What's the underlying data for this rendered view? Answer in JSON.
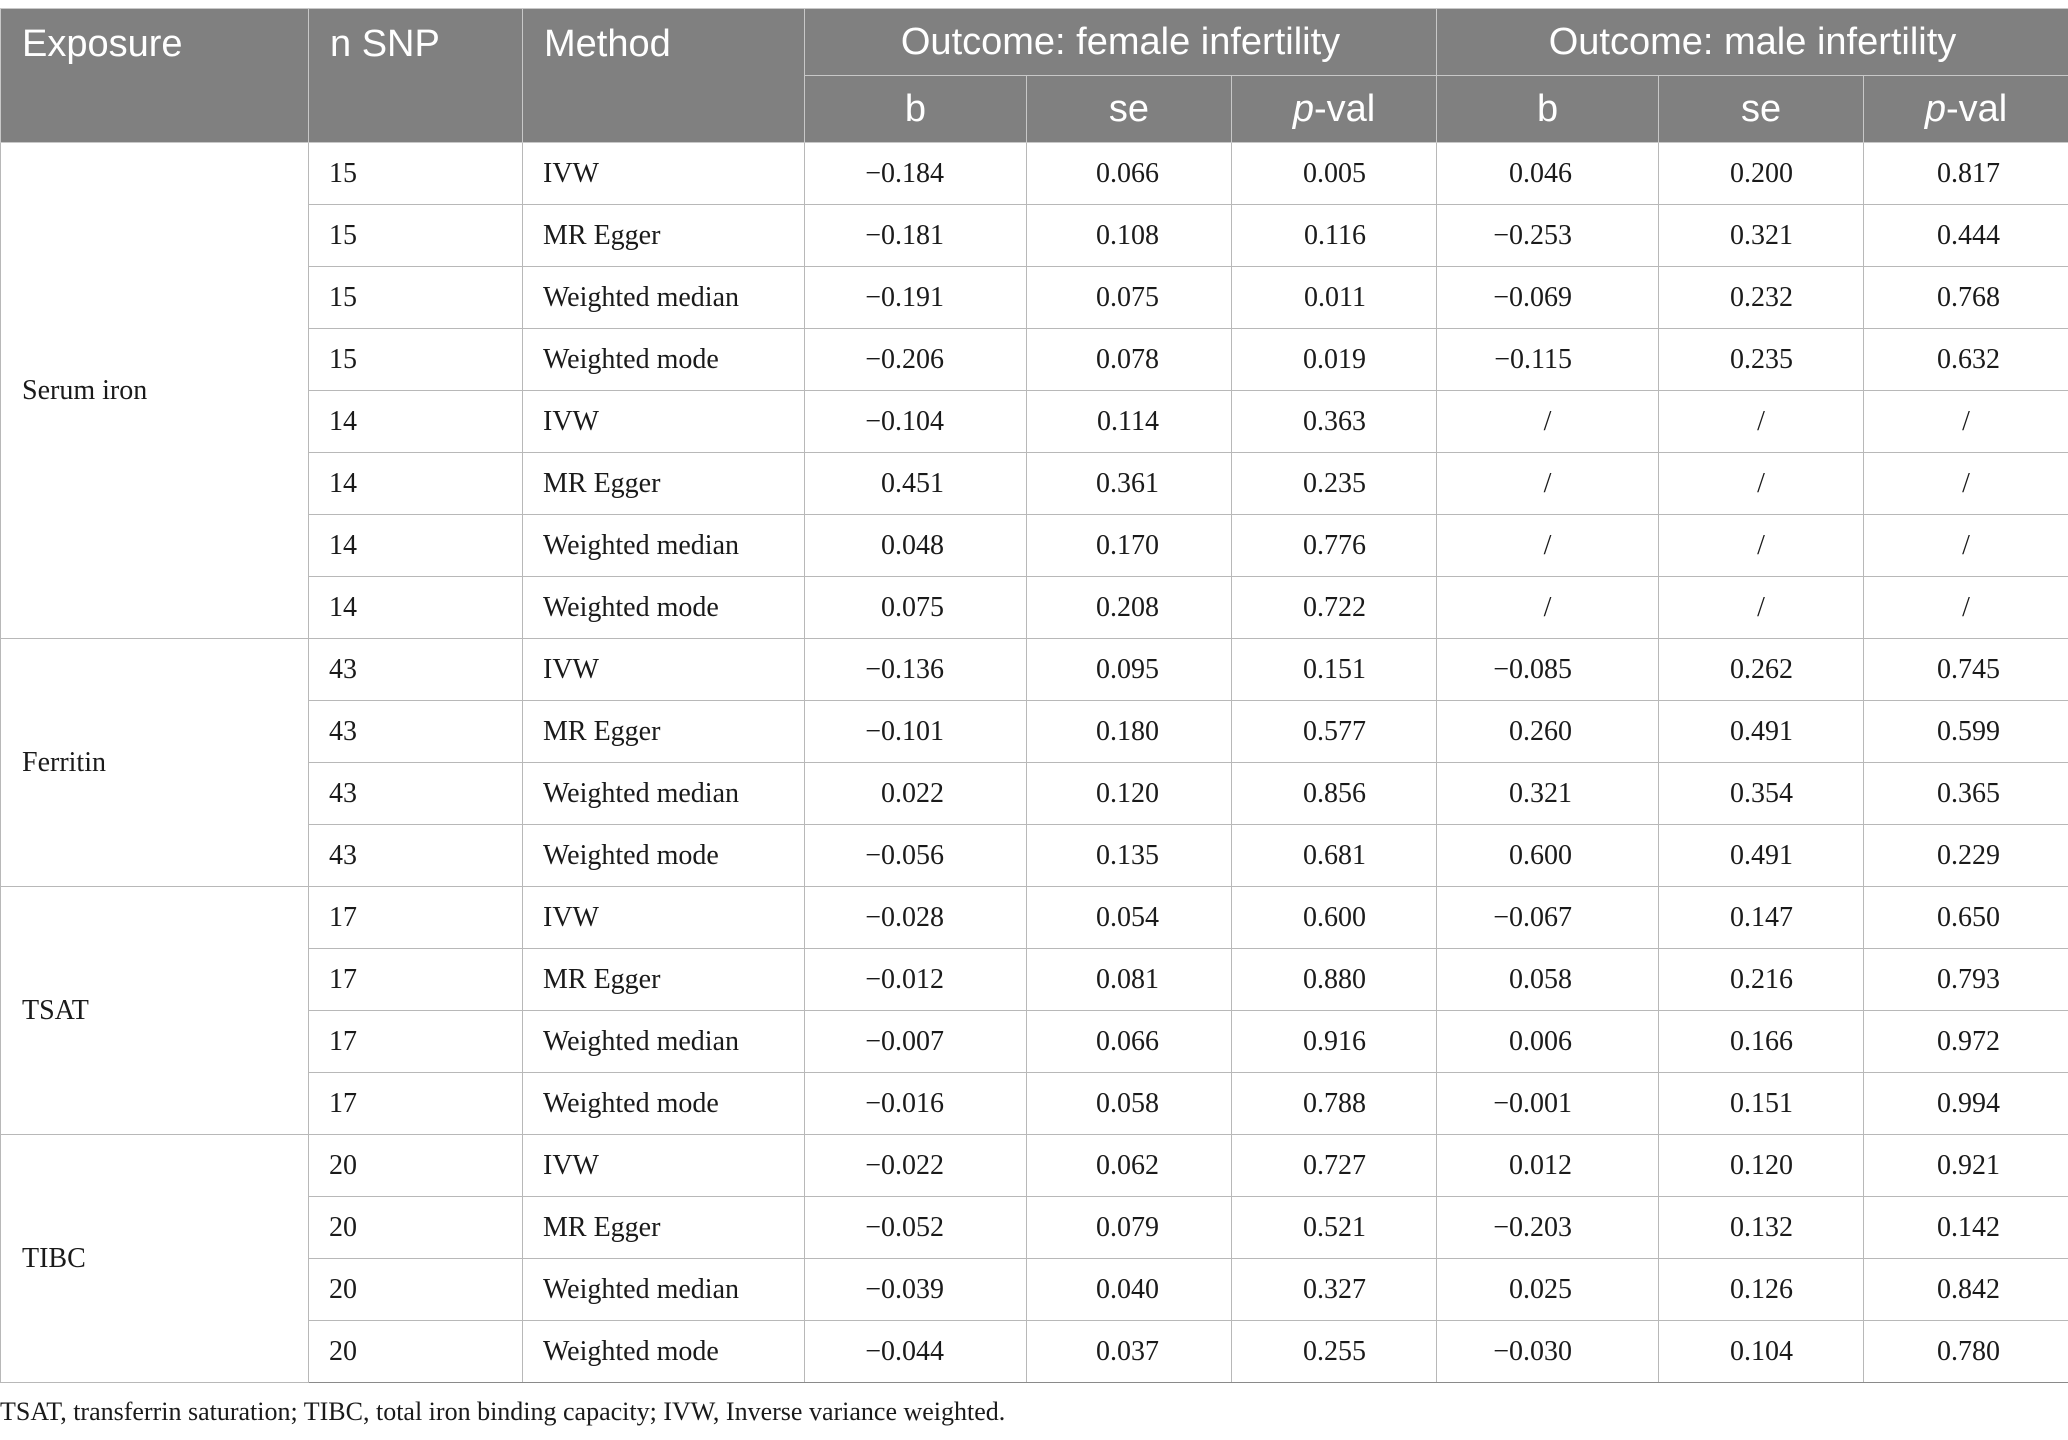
{
  "header": {
    "exposure": "Exposure",
    "n_snp": "n SNP",
    "method": "Method",
    "outcome_female": "Outcome: female infertility",
    "outcome_male": "Outcome: male infertility",
    "b": "b",
    "se": "se",
    "p_italic": "p",
    "p_rest": "-val"
  },
  "groups": [
    {
      "exposure": "Serum iron",
      "rows": [
        [
          "15",
          "IVW",
          "−0.184",
          "0.066",
          "0.005",
          "0.046",
          "0.200",
          "0.817"
        ],
        [
          "15",
          "MR Egger",
          "−0.181",
          "0.108",
          "0.116",
          "−0.253",
          "0.321",
          "0.444"
        ],
        [
          "15",
          "Weighted median",
          "−0.191",
          "0.075",
          "0.011",
          "−0.069",
          "0.232",
          "0.768"
        ],
        [
          "15",
          "Weighted mode",
          "−0.206",
          "0.078",
          "0.019",
          "−0.115",
          "0.235",
          "0.632"
        ],
        [
          "14",
          "IVW",
          "−0.104",
          "0.114",
          "0.363",
          "/",
          "/",
          "/"
        ],
        [
          "14",
          "MR Egger",
          "0.451",
          "0.361",
          "0.235",
          "/",
          "/",
          "/"
        ],
        [
          "14",
          "Weighted median",
          "0.048",
          "0.170",
          "0.776",
          "/",
          "/",
          "/"
        ],
        [
          "14",
          "Weighted mode",
          "0.075",
          "0.208",
          "0.722",
          "/",
          "/",
          "/"
        ]
      ]
    },
    {
      "exposure": "Ferritin",
      "rows": [
        [
          "43",
          "IVW",
          "−0.136",
          "0.095",
          "0.151",
          "−0.085",
          "0.262",
          "0.745"
        ],
        [
          "43",
          "MR Egger",
          "−0.101",
          "0.180",
          "0.577",
          "0.260",
          "0.491",
          "0.599"
        ],
        [
          "43",
          "Weighted median",
          "0.022",
          "0.120",
          "0.856",
          "0.321",
          "0.354",
          "0.365"
        ],
        [
          "43",
          "Weighted mode",
          "−0.056",
          "0.135",
          "0.681",
          "0.600",
          "0.491",
          "0.229"
        ]
      ]
    },
    {
      "exposure": "TSAT",
      "rows": [
        [
          "17",
          "IVW",
          "−0.028",
          "0.054",
          "0.600",
          "−0.067",
          "0.147",
          "0.650"
        ],
        [
          "17",
          "MR Egger",
          "−0.012",
          "0.081",
          "0.880",
          "0.058",
          "0.216",
          "0.793"
        ],
        [
          "17",
          "Weighted median",
          "−0.007",
          "0.066",
          "0.916",
          "0.006",
          "0.166",
          "0.972"
        ],
        [
          "17",
          "Weighted mode",
          "−0.016",
          "0.058",
          "0.788",
          "−0.001",
          "0.151",
          "0.994"
        ]
      ]
    },
    {
      "exposure": "TIBC",
      "rows": [
        [
          "20",
          "IVW",
          "−0.022",
          "0.062",
          "0.727",
          "0.012",
          "0.120",
          "0.921"
        ],
        [
          "20",
          "MR Egger",
          "−0.052",
          "0.079",
          "0.521",
          "−0.203",
          "0.132",
          "0.142"
        ],
        [
          "20",
          "Weighted median",
          "−0.039",
          "0.040",
          "0.327",
          "0.025",
          "0.126",
          "0.842"
        ],
        [
          "20",
          "Weighted mode",
          "−0.044",
          "0.037",
          "0.255",
          "−0.030",
          "0.104",
          "0.780"
        ]
      ]
    }
  ],
  "footnote": "TSAT, transferrin saturation; TIBC, total iron binding capacity; IVW, Inverse variance weighted."
}
